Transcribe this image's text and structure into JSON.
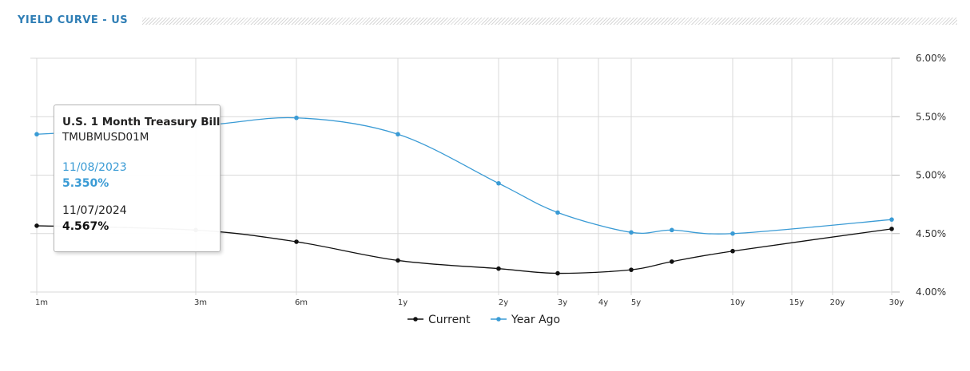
{
  "header": {
    "title": "YIELD CURVE - US"
  },
  "colors": {
    "current": "#111111",
    "year_ago": "#3a9bd5",
    "title": "#2f7eb5",
    "grid": "#d9d9d9"
  },
  "chart_data": {
    "type": "line",
    "title": "YIELD CURVE - US",
    "xlabel": "",
    "ylabel": "",
    "y_axis_side": "right",
    "ylim": [
      4.0,
      6.0
    ],
    "grid": true,
    "legend_position": "bottom-center",
    "y_ticks": [
      "6.00%",
      "5.50%",
      "5.00%",
      "4.50%",
      "4.00%"
    ],
    "x_ticks": [
      {
        "label": "1m",
        "months": 1
      },
      {
        "label": "3m",
        "months": 3
      },
      {
        "label": "6m",
        "months": 6
      },
      {
        "label": "1y",
        "months": 12
      },
      {
        "label": "2y",
        "months": 24
      },
      {
        "label": "3y",
        "months": 36
      },
      {
        "label": "4y",
        "months": 48
      },
      {
        "label": "5y",
        "months": 60
      },
      {
        "label": "10y",
        "months": 120
      },
      {
        "label": "15y",
        "months": 180
      },
      {
        "label": "20y",
        "months": 240
      },
      {
        "label": "30y",
        "months": 360
      }
    ],
    "series": [
      {
        "name": "Current",
        "points": [
          {
            "months": 1,
            "value": 4.567
          },
          {
            "months": 3,
            "value": 4.53
          },
          {
            "months": 6,
            "value": 4.43
          },
          {
            "months": 12,
            "value": 4.27
          },
          {
            "months": 24,
            "value": 4.2
          },
          {
            "months": 36,
            "value": 4.16
          },
          {
            "months": 60,
            "value": 4.19
          },
          {
            "months": 84,
            "value": 4.26
          },
          {
            "months": 120,
            "value": 4.35
          },
          {
            "months": 360,
            "value": 4.54
          }
        ]
      },
      {
        "name": "Year Ago",
        "points": [
          {
            "months": 1,
            "value": 5.35
          },
          {
            "months": 3,
            "value": 5.42
          },
          {
            "months": 6,
            "value": 5.49
          },
          {
            "months": 12,
            "value": 5.35
          },
          {
            "months": 24,
            "value": 4.93
          },
          {
            "months": 36,
            "value": 4.68
          },
          {
            "months": 60,
            "value": 4.51
          },
          {
            "months": 84,
            "value": 4.53
          },
          {
            "months": 120,
            "value": 4.5
          },
          {
            "months": 360,
            "value": 4.62
          }
        ]
      }
    ]
  },
  "tooltip": {
    "name": "U.S. 1 Month Treasury Bill",
    "symbol": "TMUBMUSD01M",
    "prev_date": "11/08/2023",
    "prev_value": "5.350%",
    "cur_date": "11/07/2024",
    "cur_value": "4.567%"
  }
}
